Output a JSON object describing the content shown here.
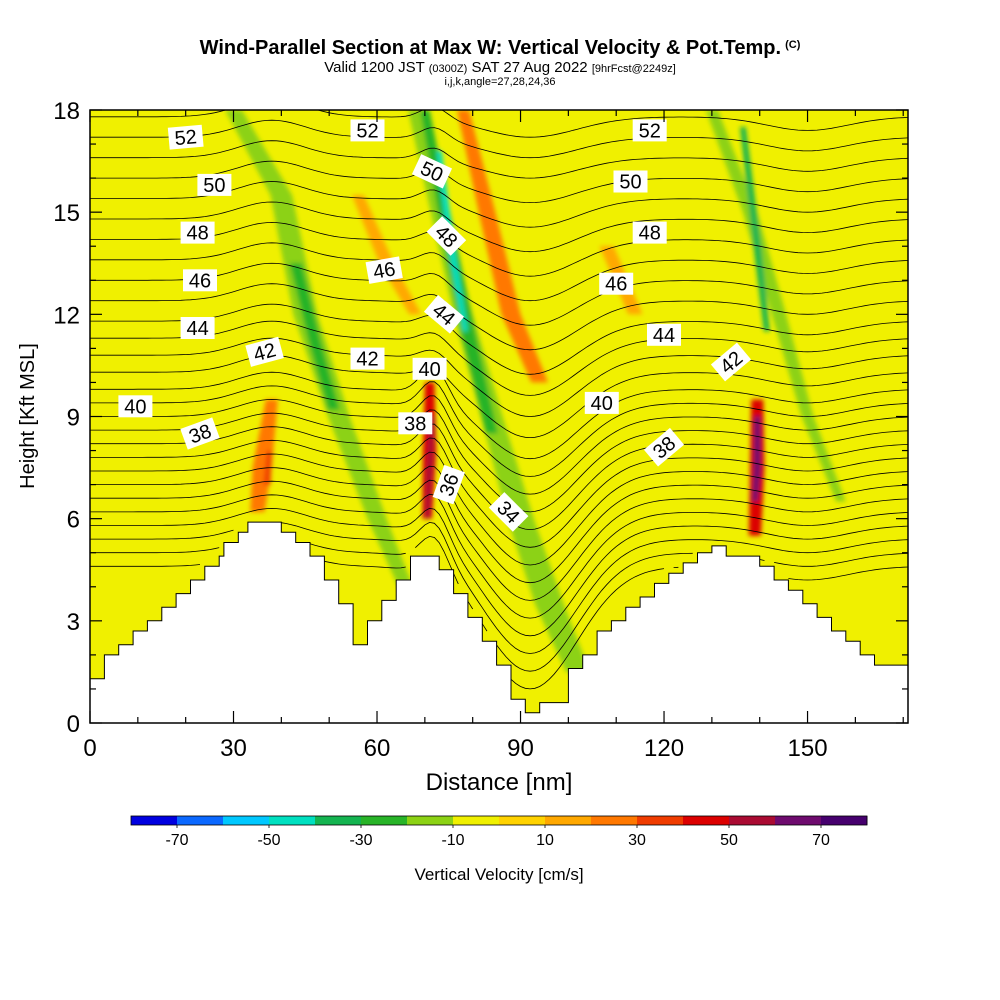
{
  "title": {
    "main": "Wind-Parallel Section at Max W: Vertical Velocity & Pot.Temp.",
    "copyright": "(C)",
    "valid_prefix": "Valid 1200 JST",
    "valid_utc": "(0300Z)",
    "valid_date": "SAT 27 Aug 2022",
    "forecast": "[9hrFcst@2249z]",
    "indices": "i,j,k,angle=27,28,24,36"
  },
  "chart_data": {
    "type": "heatmap",
    "title": "Wind-Parallel Section at Max W: Vertical Velocity & Pot.Temp.",
    "xlabel": "Distance [nm]",
    "ylabel": "Height [Kft MSL]",
    "xlim": [
      0,
      171
    ],
    "ylim": [
      0,
      18
    ],
    "xticks": [
      0,
      30,
      60,
      90,
      120,
      150
    ],
    "yticks": [
      0,
      3,
      6,
      9,
      12,
      15,
      18
    ],
    "colorbar": {
      "label": "Vertical Velocity [cm/s]",
      "levels": [
        -80,
        -70,
        -60,
        -50,
        -40,
        -30,
        -20,
        -10,
        0,
        10,
        20,
        30,
        40,
        50,
        60,
        70,
        80
      ],
      "tick_labels": [
        "-70",
        "-50",
        "-30",
        "-10",
        "10",
        "30",
        "50",
        "70"
      ],
      "colors": [
        "#0000e0",
        "#0a68ff",
        "#00c8ff",
        "#00e0c0",
        "#14b450",
        "#28b428",
        "#8cd214",
        "#f0f000",
        "#ffd200",
        "#ffa800",
        "#ff7800",
        "#f03c00",
        "#dc0000",
        "#aa0a32",
        "#6e0a6e",
        "#46006e"
      ]
    },
    "background_color": "#f0f000",
    "terrain": {
      "distance_nm": [
        0,
        3,
        3,
        6,
        6,
        9,
        9,
        12,
        12,
        15,
        15,
        18,
        18,
        21,
        21,
        24,
        24,
        27,
        27,
        28,
        28,
        31,
        31,
        33,
        33,
        40,
        40,
        43,
        43,
        46,
        46,
        49,
        49,
        52,
        52,
        55,
        55,
        58,
        58,
        61,
        61,
        64,
        64,
        67,
        67,
        73,
        73,
        76,
        76,
        79,
        79,
        82,
        82,
        85,
        85,
        88,
        88,
        91,
        91,
        94,
        94,
        100,
        100,
        103,
        103,
        106,
        106,
        109,
        109,
        112,
        112,
        115,
        115,
        118,
        118,
        121,
        121,
        124,
        124,
        127,
        127,
        130,
        130,
        133,
        133,
        140,
        140,
        143,
        143,
        146,
        146,
        149,
        149,
        152,
        152,
        155,
        155,
        158,
        158,
        161,
        161,
        164,
        164,
        171
      ],
      "height_kft": [
        1.3,
        1.3,
        2.0,
        2.0,
        2.3,
        2.3,
        2.7,
        2.7,
        3.0,
        3.0,
        3.4,
        3.4,
        3.8,
        3.8,
        4.2,
        4.2,
        4.6,
        4.6,
        4.9,
        4.9,
        5.3,
        5.3,
        5.6,
        5.6,
        5.9,
        5.9,
        5.6,
        5.6,
        5.3,
        5.3,
        4.9,
        4.9,
        4.2,
        4.2,
        3.5,
        3.5,
        2.3,
        2.3,
        3.0,
        3.0,
        3.6,
        3.6,
        4.2,
        4.2,
        4.9,
        4.9,
        4.5,
        4.5,
        3.8,
        3.8,
        3.1,
        3.1,
        2.4,
        2.4,
        1.7,
        1.7,
        0.7,
        0.7,
        0.3,
        0.3,
        0.6,
        0.6,
        1.6,
        1.6,
        2.0,
        2.0,
        2.7,
        2.7,
        3.0,
        3.0,
        3.4,
        3.4,
        3.7,
        3.7,
        4.1,
        4.1,
        4.4,
        4.4,
        4.7,
        4.7,
        5.0,
        5.0,
        5.2,
        5.2,
        4.9,
        4.9,
        4.6,
        4.6,
        4.2,
        4.2,
        3.9,
        3.9,
        3.5,
        3.5,
        3.1,
        3.1,
        2.7,
        2.7,
        2.4,
        2.4,
        2.0,
        2.0,
        1.7,
        1.7
      ]
    },
    "velocity_features": [
      {
        "x": [
          0,
          8,
          30,
          40,
          45,
          52,
          60,
          66
        ],
        "y": [
          18,
          18,
          18,
          15.5,
          12,
          9,
          6,
          4
        ],
        "w": [
          0.7,
          0.7,
          3.5,
          4.5,
          5,
          4.5,
          4,
          3
        ],
        "value": -15
      },
      {
        "x": [
          43,
          47,
          51
        ],
        "y": [
          13.5,
          11.2,
          9.2
        ],
        "w": [
          2.5,
          2.6,
          2.4
        ],
        "value": -25
      },
      {
        "x": [
          68,
          73,
          78,
          84,
          90,
          96,
          102
        ],
        "y": [
          18,
          15,
          12,
          9,
          6,
          3.5,
          1.5
        ],
        "w": [
          3,
          3.5,
          4,
          4.5,
          5.5,
          6,
          5
        ],
        "value": -15
      },
      {
        "x": [
          70,
          74,
          79,
          84
        ],
        "y": [
          18,
          15,
          11.5,
          8.5
        ],
        "w": [
          2,
          2.5,
          3,
          2.5
        ],
        "value": -25
      },
      {
        "x": [
          73,
          75.5,
          78.5
        ],
        "y": [
          16.8,
          14,
          11.5
        ],
        "w": [
          1,
          1.4,
          1
        ],
        "value": -45
      },
      {
        "x": [
          130,
          138,
          144,
          150,
          157
        ],
        "y": [
          18,
          15,
          12,
          9,
          6.5
        ],
        "w": [
          2.5,
          3,
          3,
          2.5,
          2
        ],
        "value": -15
      },
      {
        "x": [
          136.5,
          139.5,
          141.5
        ],
        "y": [
          17.5,
          14,
          11.5
        ],
        "w": [
          1.2,
          1.6,
          1.2
        ],
        "value": -35
      },
      {
        "x": [
          38,
          36,
          35
        ],
        "y": [
          9.5,
          7.5,
          6.2
        ],
        "w": [
          2.5,
          4,
          3
        ],
        "value": 25
      },
      {
        "x": [
          37.5,
          37
        ],
        "y": [
          8,
          7
        ],
        "w": [
          1,
          1.5
        ],
        "value": 35
      },
      {
        "x": [
          56,
          62,
          68
        ],
        "y": [
          15.5,
          13.5,
          12
        ],
        "w": [
          2.5,
          3,
          2.5
        ],
        "value": 15
      },
      {
        "x": [
          78,
          83,
          88,
          94
        ],
        "y": [
          18,
          15,
          12,
          10
        ],
        "w": [
          2.5,
          3.5,
          4,
          3.5
        ],
        "value": 20
      },
      {
        "x": [
          108,
          114
        ],
        "y": [
          14,
          12
        ],
        "w": [
          3,
          3
        ],
        "value": 15
      },
      {
        "x": [
          71,
          71,
          70.5
        ],
        "y": [
          10,
          8,
          6
        ],
        "w": [
          2,
          2.8,
          2
        ],
        "value": 40
      },
      {
        "x": [
          71.5,
          71,
          70.5
        ],
        "y": [
          9,
          7.5,
          6
        ],
        "w": [
          1.2,
          1.4,
          1
        ],
        "value": 55
      },
      {
        "x": [
          139.5,
          139.5,
          139
        ],
        "y": [
          9.5,
          7.5,
          5.5
        ],
        "w": [
          2.5,
          3,
          2.5
        ],
        "value": 40
      },
      {
        "x": [
          139.5,
          139.5,
          139
        ],
        "y": [
          9,
          7.5,
          6.5
        ],
        "w": [
          1.3,
          1.5,
          1.2
        ],
        "value": 60
      }
    ],
    "contour_labels": [
      {
        "value": "52",
        "x": 20,
        "y": 17.2,
        "angle": -5
      },
      {
        "value": "52",
        "x": 58,
        "y": 17.4,
        "angle": 0
      },
      {
        "value": "52",
        "x": 117,
        "y": 17.4,
        "angle": 0
      },
      {
        "value": "50",
        "x": 26,
        "y": 15.8,
        "angle": 0
      },
      {
        "value": "50",
        "x": 71.5,
        "y": 16.2,
        "angle": 25
      },
      {
        "value": "50",
        "x": 113,
        "y": 15.9,
        "angle": 0
      },
      {
        "value": "48",
        "x": 22.5,
        "y": 14.4,
        "angle": 0
      },
      {
        "value": "48",
        "x": 74.5,
        "y": 14.3,
        "angle": 45
      },
      {
        "value": "48",
        "x": 117,
        "y": 14.4,
        "angle": 0
      },
      {
        "value": "46",
        "x": 23,
        "y": 13.0,
        "angle": 0
      },
      {
        "value": "46",
        "x": 61.5,
        "y": 13.3,
        "angle": -10
      },
      {
        "value": "46",
        "x": 110,
        "y": 12.9,
        "angle": 0
      },
      {
        "value": "44",
        "x": 22.5,
        "y": 11.6,
        "angle": 0
      },
      {
        "value": "44",
        "x": 74,
        "y": 12.0,
        "angle": 40
      },
      {
        "value": "44",
        "x": 120,
        "y": 11.4,
        "angle": 0
      },
      {
        "value": "42",
        "x": 36.5,
        "y": 10.9,
        "angle": -15
      },
      {
        "value": "42",
        "x": 58,
        "y": 10.7,
        "angle": 0
      },
      {
        "value": "42",
        "x": 134,
        "y": 10.6,
        "angle": -40
      },
      {
        "value": "40",
        "x": 9.5,
        "y": 9.3,
        "angle": 0
      },
      {
        "value": "40",
        "x": 71,
        "y": 10.4,
        "angle": 0
      },
      {
        "value": "40",
        "x": 107,
        "y": 9.4,
        "angle": 0
      },
      {
        "value": "38",
        "x": 23,
        "y": 8.5,
        "angle": -20
      },
      {
        "value": "38",
        "x": 68,
        "y": 8.8,
        "angle": 0
      },
      {
        "value": "38",
        "x": 120,
        "y": 8.1,
        "angle": -40
      },
      {
        "value": "36",
        "x": 75,
        "y": 7.0,
        "angle": -70
      },
      {
        "value": "34",
        "x": 87.5,
        "y": 6.2,
        "angle": 45
      }
    ]
  }
}
